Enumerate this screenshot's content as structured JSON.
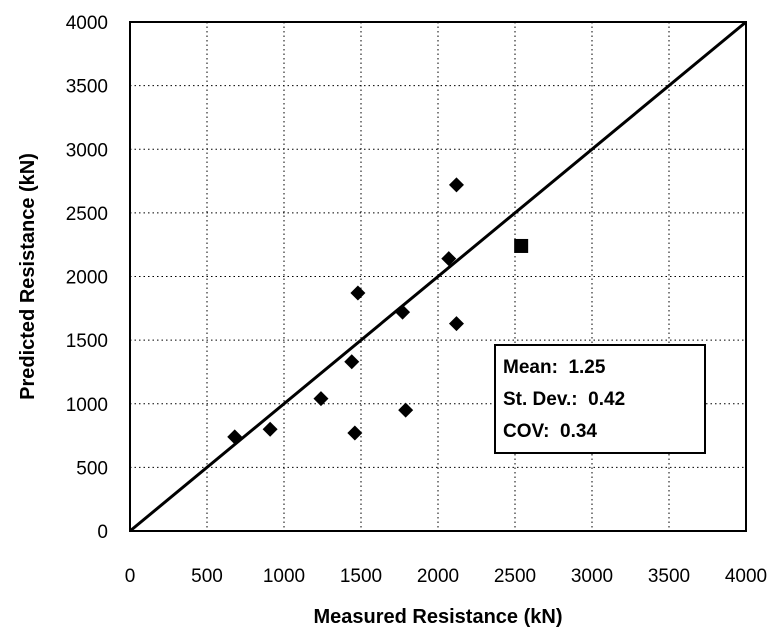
{
  "chart_data": {
    "type": "scatter",
    "title": "",
    "xlabel": "Measured Resistance (kN)",
    "ylabel": "Predicted Resistance (kN)",
    "xlim": [
      0,
      4000
    ],
    "ylim": [
      0,
      4000
    ],
    "xticks": [
      0,
      500,
      1000,
      1500,
      2000,
      2500,
      3000,
      3500,
      4000
    ],
    "yticks": [
      0,
      500,
      1000,
      1500,
      2000,
      2500,
      3000,
      3500,
      4000
    ],
    "grid": true,
    "reference_line": {
      "x": [
        0,
        4000
      ],
      "y": [
        0,
        4000
      ]
    },
    "series": [
      {
        "marker": "diamond",
        "points": [
          {
            "x": 680,
            "y": 740
          },
          {
            "x": 910,
            "y": 800
          },
          {
            "x": 1240,
            "y": 1040
          },
          {
            "x": 1440,
            "y": 1330
          },
          {
            "x": 1460,
            "y": 770
          },
          {
            "x": 1480,
            "y": 1870
          },
          {
            "x": 1770,
            "y": 1720
          },
          {
            "x": 1790,
            "y": 950
          },
          {
            "x": 2070,
            "y": 2140
          },
          {
            "x": 2120,
            "y": 2720
          },
          {
            "x": 2120,
            "y": 1630
          }
        ]
      },
      {
        "marker": "square",
        "points": [
          {
            "x": 2540,
            "y": 2240
          }
        ]
      }
    ],
    "stats_box": {
      "mean": "Mean:  1.25",
      "std": "St. Dev.:  0.42",
      "cov": "COV:  0.34"
    }
  }
}
